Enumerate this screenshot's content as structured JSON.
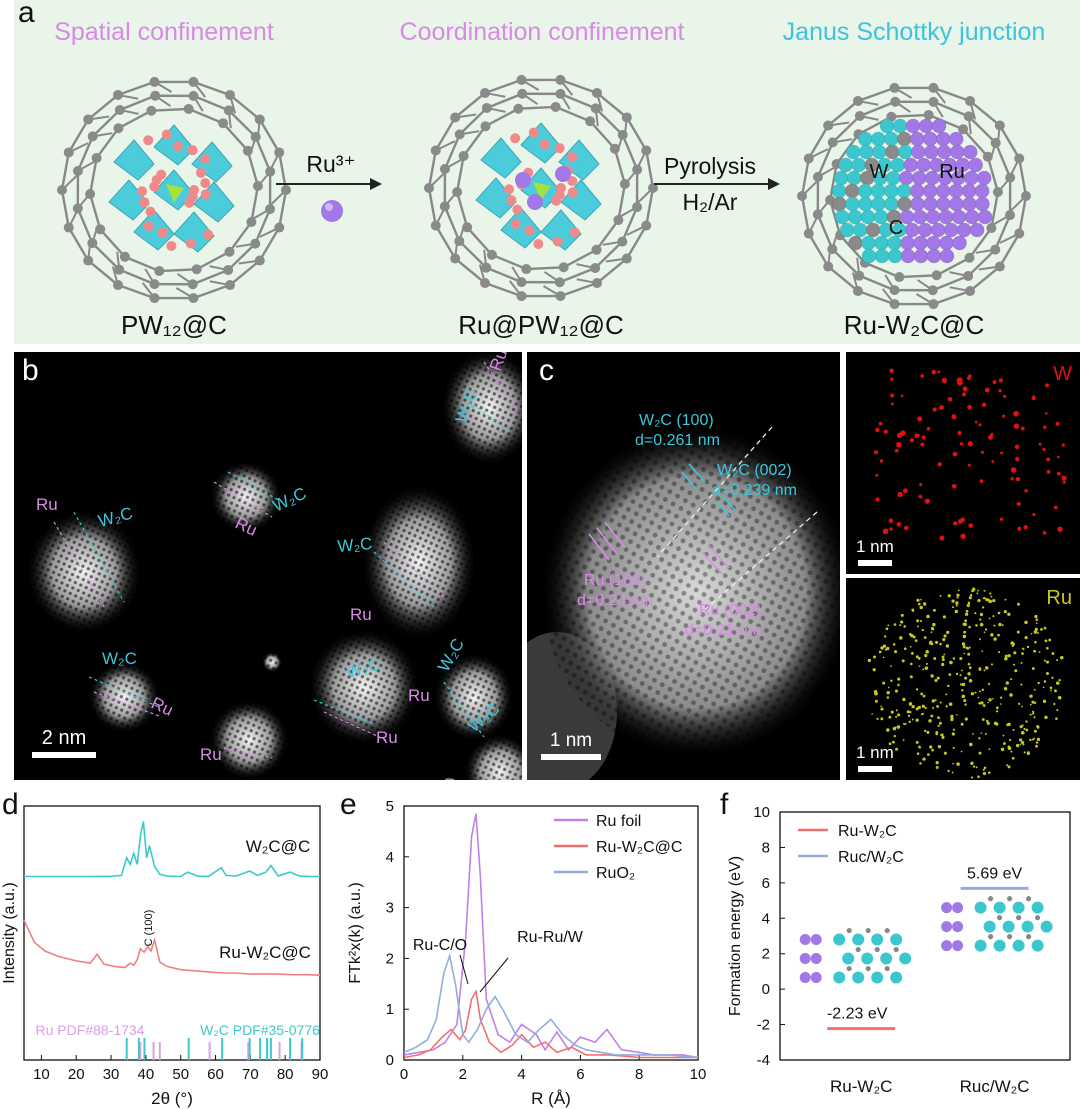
{
  "panel_a": {
    "letter": "a",
    "headings": [
      "Spatial confinement",
      "Coordination confinement",
      "Janus Schottky junction"
    ],
    "structures": [
      {
        "label": "PW₁₂@C"
      },
      {
        "label": "Ru@PW₁₂@C"
      },
      {
        "label": "Ru-W₂C@C"
      }
    ],
    "arrow1_label": "Ru³⁺",
    "arrow2_label_top": "Pyrolysis",
    "arrow2_label_bottom": "H₂/Ar",
    "atom_labels": [
      "W",
      "Ru",
      "C"
    ],
    "colors": {
      "background": "#e8f5e8",
      "pink_heading": "#d98ae6",
      "cyan_heading": "#3cc3e0",
      "ru_atom": "#a277e6",
      "w_atom": "#3cc7cf",
      "c_atom": "#8c8c8c",
      "oxygen": "#f08a8a"
    }
  },
  "panel_b": {
    "letter": "b",
    "scale_bar": "2 nm",
    "labels": [
      {
        "text": "Ru",
        "kind": "ru"
      },
      {
        "text": "W₂C",
        "kind": "w"
      },
      {
        "text": "W₂C",
        "kind": "w"
      },
      {
        "text": "Ru",
        "kind": "ru"
      },
      {
        "text": "Ru",
        "kind": "ru"
      },
      {
        "text": "W₂C",
        "kind": "w"
      },
      {
        "text": "W₂C",
        "kind": "w"
      },
      {
        "text": "Ru",
        "kind": "ru"
      },
      {
        "text": "W₂C",
        "kind": "w"
      },
      {
        "text": "Ru",
        "kind": "ru"
      },
      {
        "text": "Ru",
        "kind": "ru"
      },
      {
        "text": "W₂C",
        "kind": "w"
      },
      {
        "text": "W₂C",
        "kind": "w"
      },
      {
        "text": "Ru",
        "kind": "ru"
      },
      {
        "text": "Ru",
        "kind": "ru"
      },
      {
        "text": "W₂C",
        "kind": "w"
      },
      {
        "text": "W₂C",
        "kind": "w"
      },
      {
        "text": "Ru",
        "kind": "ru"
      }
    ]
  },
  "panel_c": {
    "letter": "c",
    "scale_bar": "1 nm",
    "annotations": {
      "w2c_100": "W₂C (100)",
      "w2c_100_d": "d=0.261 nm",
      "w2c_002": "W₂C (002)",
      "w2c_002_d": "d=0.239 nm",
      "ru_100": "Ru (100)",
      "ru_100_d": "d=0.24 nm",
      "ru_002": "Ru (002)",
      "ru_002_d": "d=0.21 nm"
    },
    "maps": [
      {
        "element": "W",
        "scale_bar": "1 nm",
        "color": "#e01010"
      },
      {
        "element": "Ru",
        "scale_bar": "1 nm",
        "color": "#c8c820"
      }
    ]
  },
  "chart_data": [
    {
      "panel": "d",
      "type": "line",
      "xlabel": "2θ (°)",
      "ylabel": "Intensity (a.u.)",
      "xlim": [
        5,
        90
      ],
      "xticks": [
        10,
        20,
        30,
        40,
        50,
        60,
        70,
        80,
        90
      ],
      "series": [
        {
          "name": "W₂C@C",
          "color": "#3cc9c9",
          "x": [
            5,
            10,
            15,
            20,
            25,
            30,
            33,
            34.5,
            35.5,
            36.5,
            37.5,
            38.5,
            39.3,
            40.2,
            41,
            42.5,
            44,
            46,
            50,
            52,
            55,
            58,
            61.7,
            63,
            66,
            69.8,
            72,
            74.5,
            75.9,
            78,
            81.4,
            84,
            87,
            90
          ],
          "y": [
            0.5,
            0.5,
            0.5,
            0.5,
            0.5,
            0.52,
            0.6,
            2.2,
            1.6,
            2.6,
            1.6,
            4.4,
            5.5,
            2.2,
            3.3,
            1.4,
            0.7,
            0.55,
            0.5,
            0.9,
            0.52,
            0.52,
            1.3,
            0.6,
            0.55,
            1.0,
            0.6,
            0.9,
            1.5,
            0.55,
            0.9,
            0.55,
            0.5,
            0.5
          ]
        },
        {
          "name": "Ru-W₂C@C",
          "color": "#f08080",
          "x": [
            5,
            8,
            11,
            15,
            20,
            24,
            26,
            28,
            31,
            34,
            35.5,
            36.5,
            37.5,
            38.4,
            39.5,
            40.5,
            41.5,
            42.5,
            44,
            46,
            50,
            54,
            58,
            62,
            66,
            70,
            74,
            78,
            82,
            86,
            90
          ],
          "y": [
            6.8,
            4.8,
            4.0,
            3.5,
            3.1,
            2.9,
            3.7,
            2.8,
            2.6,
            2.5,
            2.9,
            2.7,
            3.2,
            4.2,
            3.9,
            4.4,
            4.0,
            5.0,
            3.0,
            2.6,
            2.3,
            2.2,
            2.1,
            2.0,
            2.0,
            1.9,
            1.9,
            1.9,
            1.85,
            1.85,
            1.8
          ]
        }
      ],
      "annotations": [
        "W₂C@C",
        "Ru-W₂C@C",
        "C (100)"
      ],
      "references": [
        {
          "name": "Ru PDF#88-1734",
          "color": "#d9a0e8",
          "positions": [
            38.4,
            42.2,
            44.0,
            58.3,
            69.4,
            78.4,
            84.7
          ]
        },
        {
          "name": "W₂C PDF#35-0776",
          "color": "#3cc9c9",
          "positions": [
            34.5,
            38.0,
            39.6,
            52.3,
            61.9,
            69.8,
            72.8,
            74.8,
            75.9,
            81.4,
            84.9
          ]
        }
      ]
    },
    {
      "panel": "e",
      "type": "line",
      "xlabel": "R (Å)",
      "ylabel": "FTk²x(k) (a.u.)",
      "xlim": [
        0,
        10
      ],
      "ylim": [
        0,
        5
      ],
      "xticks": [
        0,
        2,
        4,
        6,
        8,
        10
      ],
      "yticks": [
        0,
        1,
        2,
        3,
        4,
        5
      ],
      "series": [
        {
          "name": "Ru foil",
          "color": "#c080e8",
          "x": [
            0,
            0.5,
            1.0,
            1.4,
            1.8,
            2.1,
            2.3,
            2.45,
            2.6,
            2.8,
            3.2,
            3.6,
            4.0,
            4.5,
            4.8,
            5.2,
            5.6,
            6.0,
            6.5,
            6.9,
            7.4,
            8.0,
            8.5,
            9.0,
            9.5,
            10
          ],
          "y": [
            0.1,
            0.15,
            0.2,
            0.35,
            0.7,
            2.4,
            4.4,
            4.85,
            3.6,
            1.2,
            0.5,
            0.35,
            0.7,
            0.5,
            0.2,
            0.55,
            0.2,
            0.45,
            0.35,
            0.6,
            0.2,
            0.15,
            0.1,
            0.1,
            0.1,
            0.05
          ]
        },
        {
          "name": "Ru-W₂C@C",
          "color": "#f07070",
          "x": [
            0,
            0.5,
            0.9,
            1.3,
            1.6,
            1.9,
            2.1,
            2.3,
            2.45,
            2.6,
            2.9,
            3.3,
            3.7,
            4.0,
            4.4,
            4.8,
            5.2,
            5.7,
            6.2,
            7.0,
            8.0,
            9.0,
            10
          ],
          "y": [
            0.05,
            0.1,
            0.2,
            0.45,
            0.6,
            0.4,
            0.6,
            1.2,
            1.35,
            0.8,
            0.35,
            0.15,
            0.3,
            0.5,
            0.25,
            0.35,
            0.15,
            0.25,
            0.1,
            0.1,
            0.05,
            0.05,
            0.05
          ]
        },
        {
          "name": "RuO₂",
          "color": "#90aedc",
          "x": [
            0,
            0.4,
            0.8,
            1.1,
            1.35,
            1.55,
            1.75,
            2.0,
            2.2,
            2.5,
            2.8,
            3.1,
            3.4,
            3.8,
            4.2,
            4.6,
            5.0,
            5.4,
            5.8,
            6.2,
            6.7,
            7.2,
            8,
            9,
            10
          ],
          "y": [
            0.15,
            0.25,
            0.4,
            0.8,
            1.7,
            2.05,
            1.5,
            0.5,
            0.35,
            0.6,
            1.0,
            1.25,
            0.95,
            0.5,
            0.35,
            0.6,
            0.8,
            0.5,
            0.3,
            0.2,
            0.15,
            0.1,
            0.1,
            0.1,
            0.05
          ]
        }
      ],
      "annotations": [
        "Ru-C/O",
        "Ru-Ru/W"
      ]
    },
    {
      "panel": "f",
      "type": "bar",
      "ylabel": "Formation energy (eV)",
      "ylim": [
        -4,
        10
      ],
      "yticks": [
        -4,
        -2,
        0,
        2,
        4,
        6,
        8,
        10
      ],
      "categories": [
        "Ru-W₂C",
        "Ruc/W₂C"
      ],
      "series": [
        {
          "name": "Ru-W₂C",
          "color": "#f07070",
          "values": [
            -2.23,
            null
          ]
        },
        {
          "name": "Ruc/W₂C",
          "color": "#90aedc",
          "values": [
            null,
            5.69
          ]
        }
      ],
      "value_labels": [
        "-2.23 eV",
        "5.69 eV"
      ]
    }
  ],
  "letters": {
    "d": "d",
    "e": "e",
    "f": "f"
  }
}
